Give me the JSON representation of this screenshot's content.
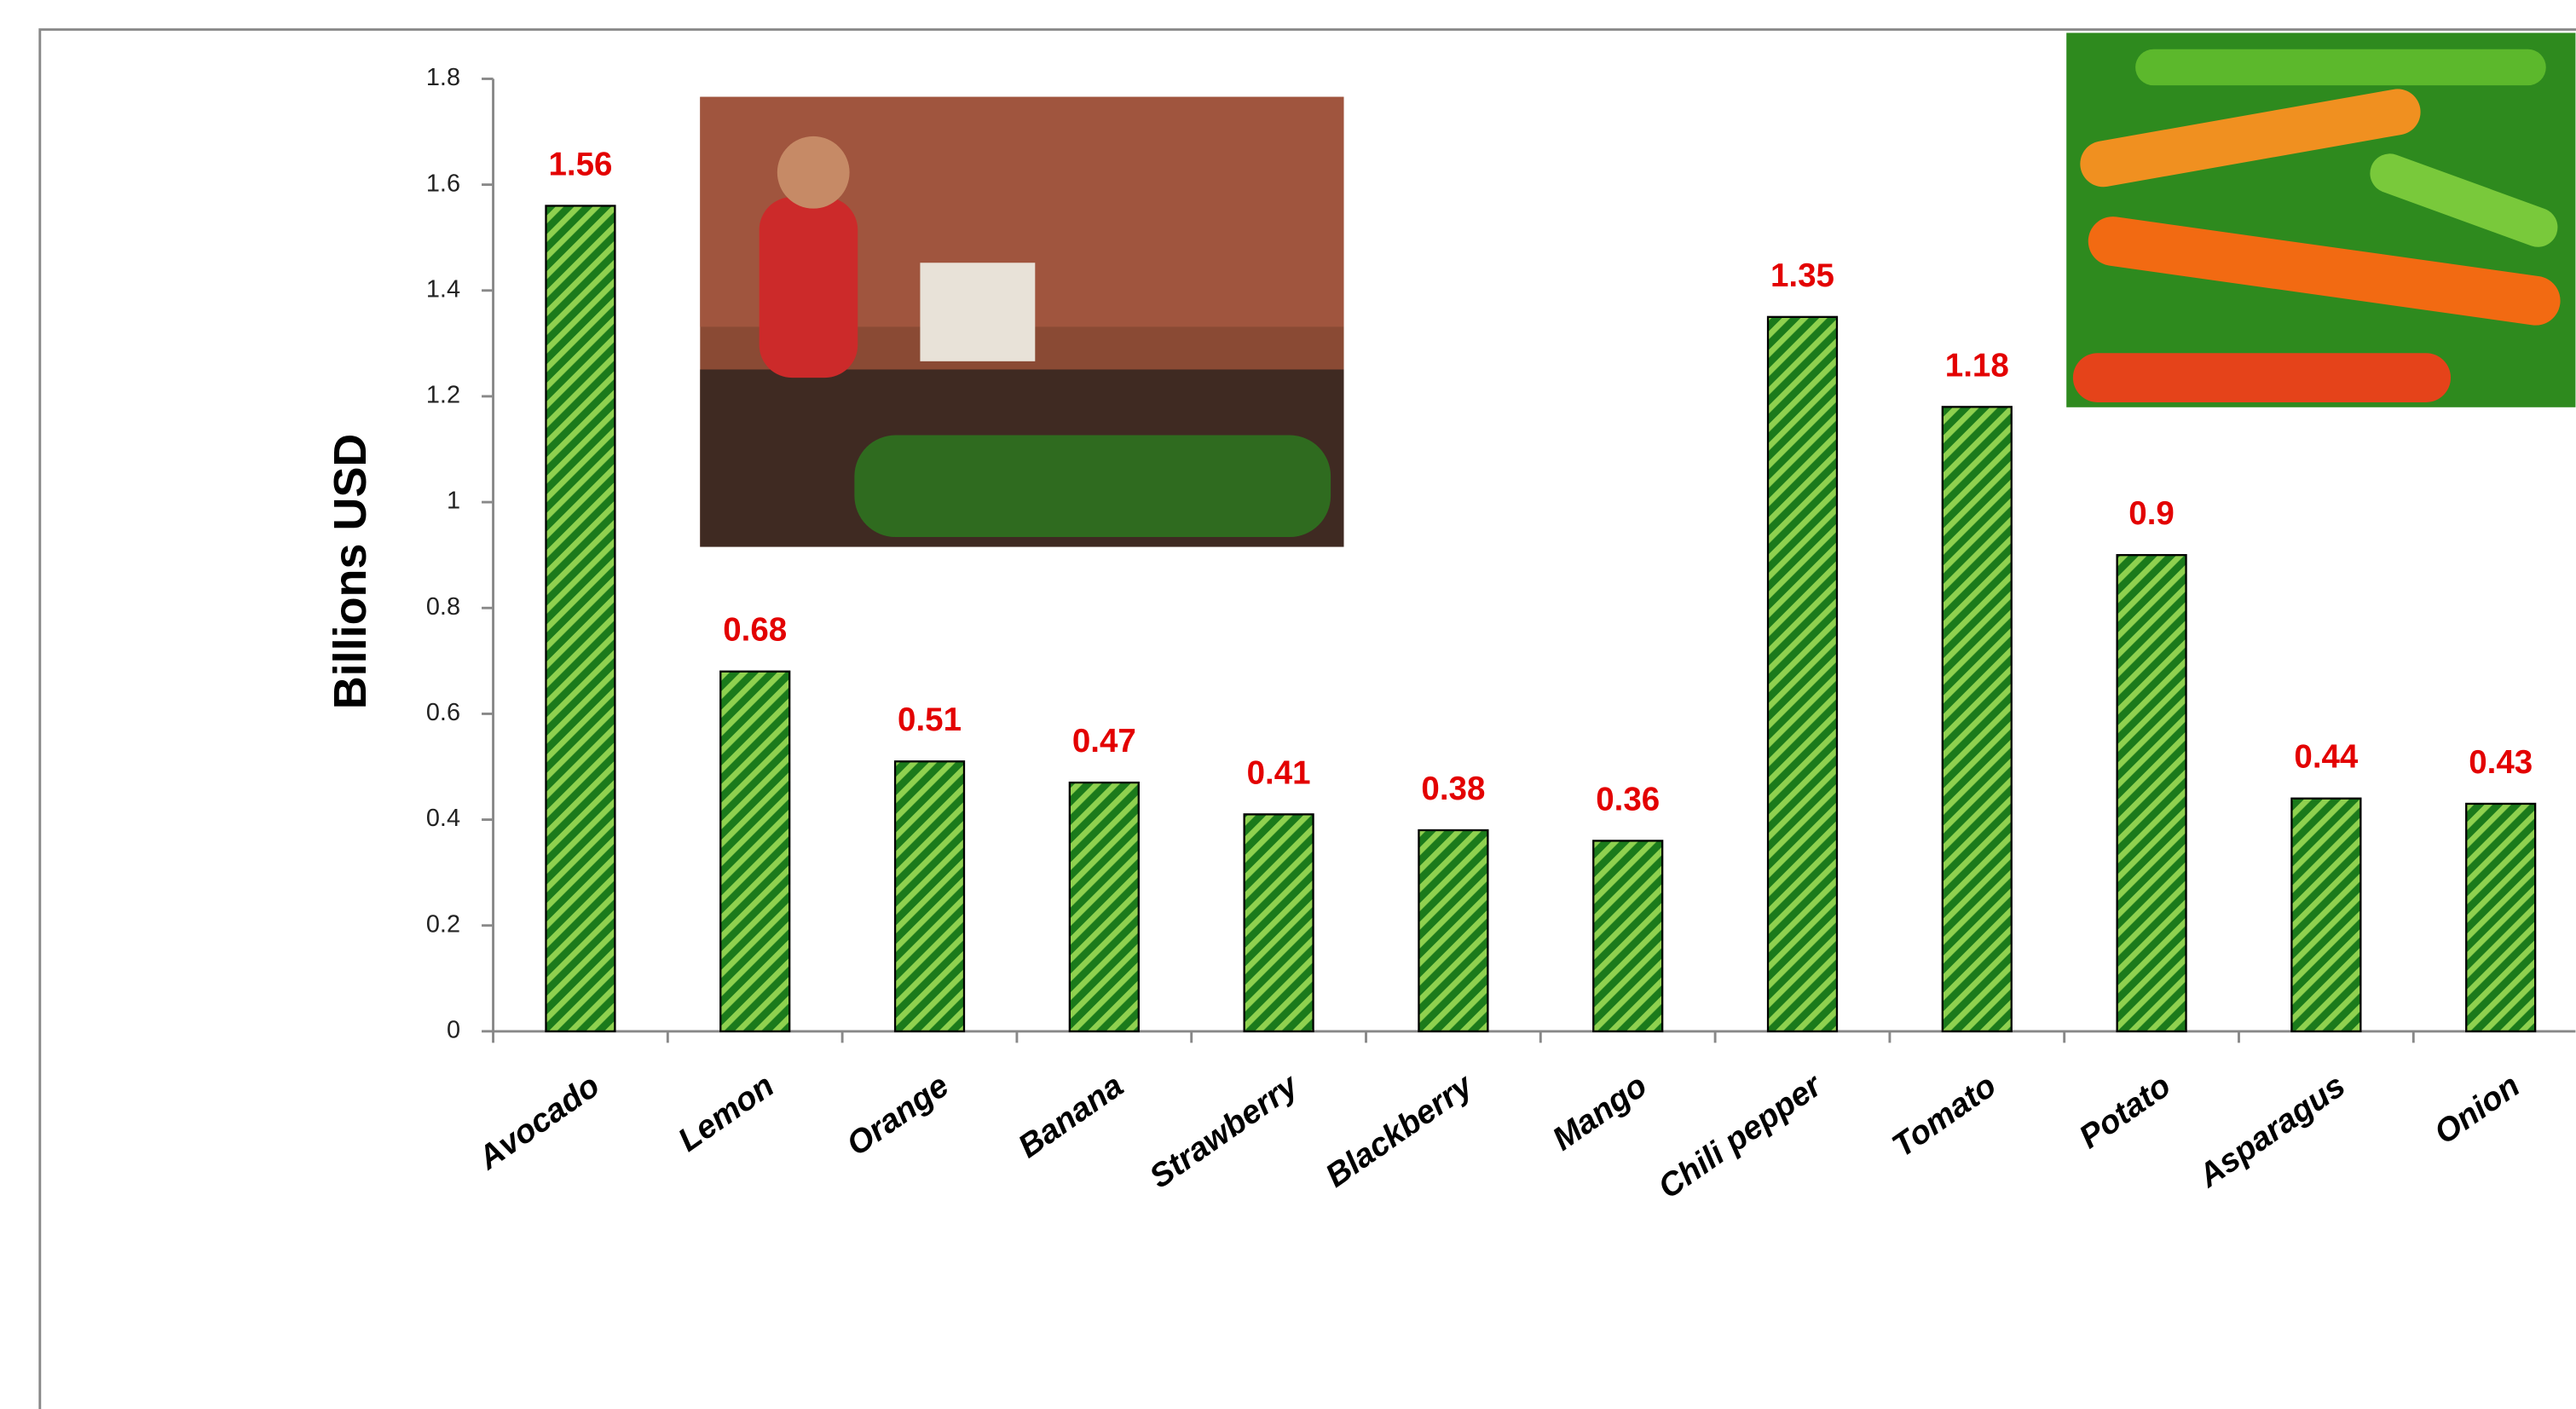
{
  "chart_data": {
    "type": "bar",
    "y_axis_label": "Billions USD",
    "categories": [
      "Avocado",
      "Lemon",
      "Orange",
      "Banana",
      "Strawberry",
      "Blackberry",
      "Mango",
      "Chili pepper",
      "Tomato",
      "Potato",
      "Asparagus",
      "Onion"
    ],
    "values": [
      1.56,
      0.68,
      0.51,
      0.47,
      0.41,
      0.38,
      0.36,
      1.35,
      1.18,
      0.9,
      0.44,
      0.43
    ],
    "color": "#1b7a1b",
    "stripe_color": "#8fd14f",
    "label_color": "#e30000",
    "ylim": [
      0,
      1.8
    ],
    "yticks": [
      0,
      0.2,
      0.4,
      0.6,
      0.8,
      1,
      1.2,
      1.4,
      1.6,
      1.8
    ],
    "grid": false
  }
}
